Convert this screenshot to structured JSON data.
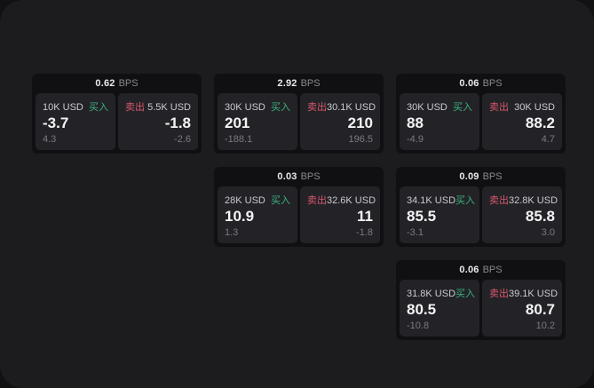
{
  "labels": {
    "bps_unit": "BPS",
    "buy": "买入",
    "sell": "卖出"
  },
  "colors": {
    "buy": "#3ab17c",
    "sell": "#d9566c",
    "page-bg": "#1c1c1e",
    "outer-bg": "#111113",
    "card-bg": "#101013",
    "panel-bg": "#232327"
  },
  "cards": [
    {
      "bps": "0.62",
      "buy": {
        "amount": "10K USD",
        "price": "-3.7",
        "sub": "4.3"
      },
      "sell": {
        "amount": "5.5K USD",
        "price": "-1.8",
        "sub": "-2.6"
      }
    },
    {
      "bps": "2.92",
      "buy": {
        "amount": "30K USD",
        "price": "201",
        "sub": "-188.1"
      },
      "sell": {
        "amount": "30.1K USD",
        "price": "210",
        "sub": "196.5"
      }
    },
    {
      "bps": "0.06",
      "buy": {
        "amount": "30K USD",
        "price": "88",
        "sub": "-4.9"
      },
      "sell": {
        "amount": "30K USD",
        "price": "88.2",
        "sub": "4.7"
      }
    },
    {
      "bps": "0.03",
      "buy": {
        "amount": "28K USD",
        "price": "10.9",
        "sub": "1.3"
      },
      "sell": {
        "amount": "32.6K USD",
        "price": "11",
        "sub": "-1.8"
      }
    },
    {
      "bps": "0.09",
      "buy": {
        "amount": "34.1K USD",
        "price": "85.5",
        "sub": "-3.1"
      },
      "sell": {
        "amount": "32.8K USD",
        "price": "85.8",
        "sub": "3.0"
      }
    },
    {
      "bps": "0.06",
      "buy": {
        "amount": "31.8K USD",
        "price": "80.5",
        "sub": "-10.8"
      },
      "sell": {
        "amount": "39.1K USD",
        "price": "80.7",
        "sub": "10.2"
      }
    }
  ]
}
